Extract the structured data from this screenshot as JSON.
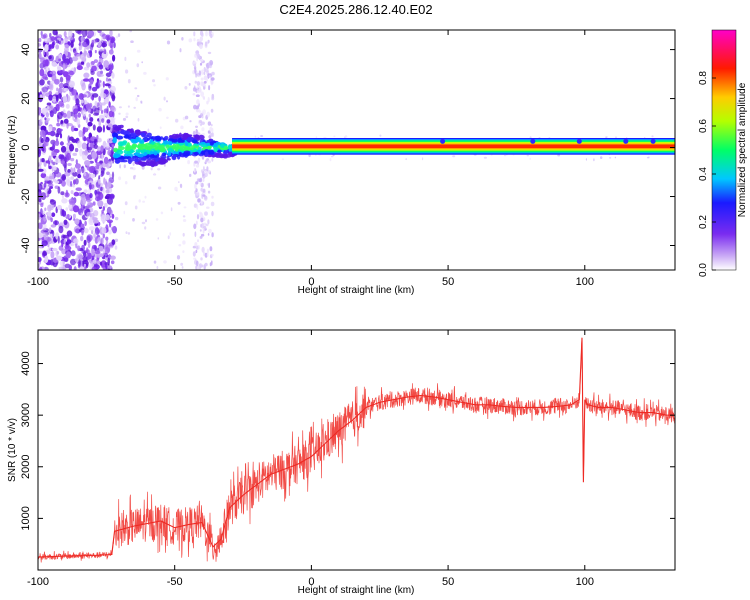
{
  "title": "C2E4.2025.286.12.40.E02",
  "colors": {
    "snr_line": "#ee2a24",
    "ridge": "#ff2a00",
    "speckle": "#7a2cf0"
  },
  "chart_data": [
    {
      "type": "heatmap",
      "xlabel": "Height of straight line (km)",
      "ylabel": "Frequency (Hz)",
      "xlim": [
        -100,
        133
      ],
      "ylim": [
        -50,
        48
      ],
      "xticks": [
        -100,
        -50,
        0,
        50,
        100
      ],
      "yticks": [
        -40,
        -20,
        0,
        20,
        40
      ],
      "grid": false,
      "colorbar": {
        "label": "Normalized spectral amplitude",
        "range": [
          0,
          1
        ],
        "ticks": [
          0.0,
          0.2,
          0.4,
          0.6,
          0.8
        ],
        "colormap": "rainbow (white-purple-blue-cyan-green-yellow-red-magenta)"
      },
      "features": {
        "ridge_frequency_hz": 0.5,
        "broadband_noise_region_km": [
          -100,
          -72
        ],
        "noise_stripe_km": [
          -43,
          -36
        ],
        "transition_region_km": [
          -72,
          -28
        ]
      }
    },
    {
      "type": "line",
      "xlabel": "Height of straight line (km)",
      "ylabel": "SNR (10 * v/v)",
      "xlim": [
        -100,
        133
      ],
      "ylim": [
        0,
        4650
      ],
      "xticks": [
        -100,
        -50,
        0,
        50,
        100
      ],
      "yticks": [
        1000,
        2000,
        3000,
        4000
      ],
      "grid": false,
      "series": [
        {
          "x": [
            -100,
            -90,
            -80,
            -73,
            -72,
            -65,
            -60,
            -55,
            -50,
            -45,
            -40,
            -36,
            -33,
            -30,
            -25,
            -20,
            -15,
            -10,
            -5,
            0,
            5,
            10,
            15,
            20,
            25,
            30,
            35,
            40,
            45,
            50,
            55,
            60,
            65,
            70,
            75,
            80,
            85,
            90,
            95,
            98,
            99,
            99.5,
            100,
            101,
            105,
            110,
            115,
            120,
            125,
            130,
            133
          ],
          "y": [
            250,
            270,
            280,
            300,
            750,
            850,
            900,
            950,
            820,
            880,
            920,
            450,
            600,
            1200,
            1450,
            1650,
            1850,
            1950,
            2050,
            2200,
            2450,
            2700,
            2900,
            3150,
            3250,
            3300,
            3350,
            3380,
            3350,
            3300,
            3250,
            3200,
            3200,
            3170,
            3150,
            3150,
            3150,
            3170,
            3200,
            3300,
            4500,
            1700,
            3300,
            3200,
            3150,
            3150,
            3100,
            3050,
            3050,
            3000,
            3000
          ]
        }
      ]
    }
  ]
}
